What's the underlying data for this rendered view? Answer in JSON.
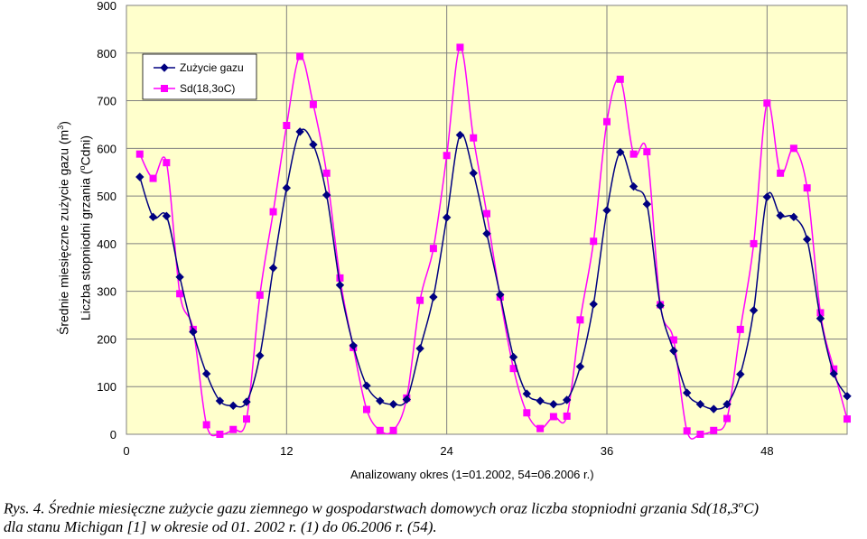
{
  "chart_data": {
    "type": "line",
    "x": [
      1,
      2,
      3,
      4,
      5,
      6,
      7,
      8,
      9,
      10,
      11,
      12,
      13,
      14,
      15,
      16,
      17,
      18,
      19,
      20,
      21,
      22,
      23,
      24,
      25,
      26,
      27,
      28,
      29,
      30,
      31,
      32,
      33,
      34,
      35,
      36,
      37,
      38,
      39,
      40,
      41,
      42,
      43,
      44,
      45,
      46,
      47,
      48,
      49,
      50,
      51,
      52,
      53,
      54
    ],
    "series": [
      {
        "name": "Zużycie gazu",
        "color": "#000080",
        "marker": "diamond",
        "values": [
          540,
          456,
          458,
          330,
          215,
          127,
          70,
          60,
          68,
          165,
          349,
          517,
          635,
          608,
          502,
          313,
          186,
          102,
          70,
          63,
          73,
          180,
          288,
          455,
          628,
          548,
          421,
          293,
          162,
          85,
          70,
          63,
          72,
          142,
          273,
          470,
          592,
          520,
          483,
          270,
          175,
          87,
          63,
          53,
          63,
          126,
          260,
          498,
          459,
          456,
          409,
          243,
          127,
          80
        ]
      },
      {
        "name": "Sd(18,3oC)",
        "color": "#FF00FF",
        "marker": "square",
        "values": [
          588,
          537,
          570,
          295,
          220,
          20,
          0,
          10,
          32,
          292,
          467,
          648,
          793,
          692,
          548,
          328,
          182,
          52,
          8,
          8,
          76,
          281,
          390,
          585,
          812,
          622,
          463,
          288,
          138,
          45,
          12,
          37,
          38,
          240,
          405,
          656,
          745,
          588,
          593,
          272,
          198,
          7,
          0,
          8,
          33,
          220,
          400,
          695,
          548,
          600,
          517,
          255,
          137,
          32
        ]
      }
    ],
    "xlim": [
      0,
      54
    ],
    "ylim": [
      0,
      900
    ],
    "xticks": [
      0,
      12,
      24,
      36,
      48
    ],
    "yticks": [
      0,
      100,
      200,
      300,
      400,
      500,
      600,
      700,
      800,
      900
    ],
    "xlabel": "Analizowany okres (1=01.2002, 54=06.2006 r.)",
    "ylabel": [
      "Średnie miesięczne zużycie gazu (m",
      "3",
      ")",
      "Liczba stopniodni grzania (",
      "o",
      "Cdni)"
    ],
    "legend": "top-left",
    "grid": true,
    "plot_background": "#FFFFCC"
  },
  "caption": {
    "line1_a": "Rys. 4. Średnie miesięczne zużycie gazu ziemnego w gospodarstwach domowych oraz liczba stopniodni grzania Sd(18,3",
    "line1_sup": "o",
    "line1_b": "C)",
    "line2": "dla stanu Michigan [1] w okresie od 01. 2002 r. (1) do 06.2006 r. (54)."
  }
}
